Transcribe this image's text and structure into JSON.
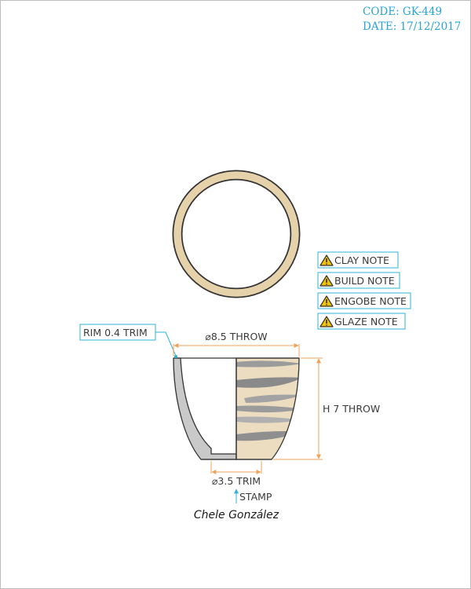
{
  "header": {
    "code_label": "CODE:",
    "code_value": "GK-449",
    "date_label": "DATE:",
    "date_value": "17/12/2017"
  },
  "notes": [
    {
      "icon": "warning-icon",
      "label": "CLAY NOTE"
    },
    {
      "icon": "warning-icon",
      "label": "BUILD NOTE"
    },
    {
      "icon": "warning-icon",
      "label": "ENGOBE NOTE"
    },
    {
      "icon": "warning-icon",
      "label": "GLAZE NOTE"
    }
  ],
  "dimensions": {
    "rim": "RIM 0.4 TRIM",
    "diameter": "⌀8.5 THROW",
    "height": "H 7 THROW",
    "base": "⌀3.5 TRIM",
    "stamp": "STAMP"
  },
  "signature": "Chele González",
  "colors": {
    "header_text": "#29a3d6",
    "leader_blue": "#2eb3d4",
    "dimension_orange": "#f0a258",
    "warning_yellow": "#f2c300",
    "clay_ring": "#e6d2aa",
    "clay_body": "#ecdcc0",
    "glaze_stripe": "#9b9b9b",
    "wall_section": "#c9c9c9"
  }
}
